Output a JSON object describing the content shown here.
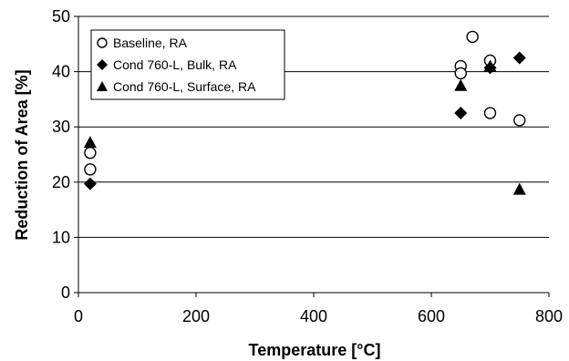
{
  "chart_data": {
    "type": "scatter",
    "xlabel": "Temperature [°C]",
    "ylabel": "Reduction of Area [%]",
    "xlim": [
      0,
      800
    ],
    "ylim": [
      0,
      50
    ],
    "xticks": [
      0,
      200,
      400,
      600,
      800
    ],
    "yticks": [
      0,
      10,
      20,
      30,
      40,
      50
    ],
    "grid": "horizontal",
    "legend_position": "top-left",
    "series": [
      {
        "name": "Baseline, RA",
        "marker": "open-circle",
        "color": "#000000",
        "points": [
          [
            20,
            25.3
          ],
          [
            20,
            22.3
          ],
          [
            650,
            41.0
          ],
          [
            650,
            39.7
          ],
          [
            670,
            46.3
          ],
          [
            700,
            42.0
          ],
          [
            700,
            32.5
          ],
          [
            750,
            31.2
          ]
        ]
      },
      {
        "name": "Cond 760-L, Bulk, RA",
        "marker": "diamond",
        "color": "#000000",
        "points": [
          [
            20,
            19.7
          ],
          [
            650,
            32.5
          ],
          [
            700,
            40.7
          ],
          [
            750,
            42.5
          ]
        ]
      },
      {
        "name": "Cond 760-L, Surface, RA",
        "marker": "triangle",
        "color": "#000000",
        "points": [
          [
            20,
            27.2
          ],
          [
            650,
            37.5
          ],
          [
            700,
            41.0
          ],
          [
            750,
            18.7
          ]
        ]
      }
    ]
  }
}
